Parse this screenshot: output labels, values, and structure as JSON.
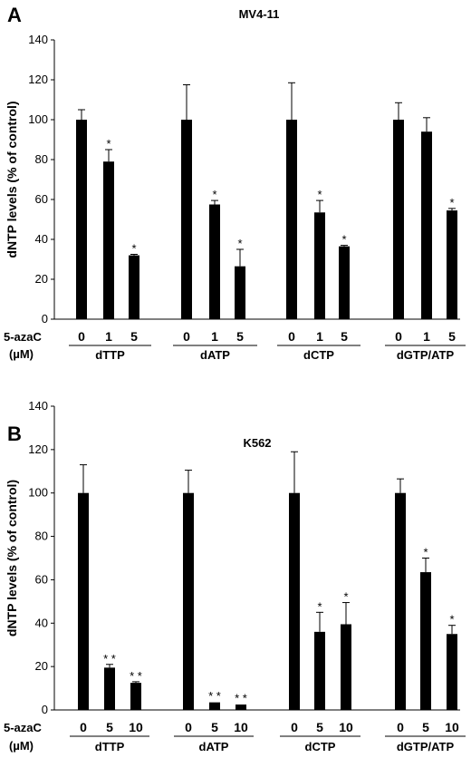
{
  "chart_data": [
    {
      "type": "bar",
      "panel_label": "A",
      "title": "MV4-11",
      "ylabel": "dNTP levels (% of control)",
      "ylim": [
        0,
        140
      ],
      "yticks": [
        0,
        20,
        40,
        60,
        80,
        100,
        120,
        140
      ],
      "dose_row_label": "5-azaC",
      "unit_row_label": "(µM)",
      "groups": [
        {
          "name": "dTTP",
          "doses": [
            "0",
            "1",
            "5"
          ],
          "values": [
            100,
            79,
            32
          ],
          "errors": [
            5,
            6,
            0.5
          ],
          "significance": [
            "",
            "*",
            "*"
          ]
        },
        {
          "name": "dATP",
          "doses": [
            "0",
            "1",
            "5"
          ],
          "values": [
            100,
            57.5,
            26.5
          ],
          "errors": [
            17.5,
            2,
            8.5
          ],
          "significance": [
            "",
            "*",
            "*"
          ]
        },
        {
          "name": "dCTP",
          "doses": [
            "0",
            "1",
            "5"
          ],
          "values": [
            100,
            53.5,
            36.5
          ],
          "errors": [
            18.5,
            6,
            0.5
          ],
          "significance": [
            "",
            "*",
            "*"
          ]
        },
        {
          "name": "dGTP/ATP",
          "doses": [
            "0",
            "1",
            "5"
          ],
          "values": [
            100,
            94,
            54.5
          ],
          "errors": [
            8.5,
            7,
            1
          ],
          "significance": [
            "",
            "",
            "*"
          ]
        }
      ]
    },
    {
      "type": "bar",
      "panel_label": "B",
      "title": "K562",
      "ylabel": "dNTP levels (% of control)",
      "ylim": [
        0,
        140
      ],
      "yticks": [
        0,
        20,
        40,
        60,
        80,
        100,
        120,
        140
      ],
      "dose_row_label": "5-azaC",
      "unit_row_label": "(µM)",
      "groups": [
        {
          "name": "dTTP",
          "doses": [
            "0",
            "5",
            "10"
          ],
          "values": [
            100,
            19.5,
            12.5
          ],
          "errors": [
            13,
            1.5,
            0.5
          ],
          "significance": [
            "",
            "* *",
            "* *"
          ]
        },
        {
          "name": "dATP",
          "doses": [
            "0",
            "5",
            "10"
          ],
          "values": [
            100,
            3.5,
            2.5
          ],
          "errors": [
            10.5,
            0.3,
            0.3
          ],
          "significance": [
            "",
            "* *",
            "* *"
          ]
        },
        {
          "name": "dCTP",
          "doses": [
            "0",
            "5",
            "10"
          ],
          "values": [
            100,
            36,
            39.5
          ],
          "errors": [
            19,
            9,
            10
          ],
          "significance": [
            "",
            "*",
            "*"
          ]
        },
        {
          "name": "dGTP/ATP",
          "doses": [
            "0",
            "5",
            "10"
          ],
          "values": [
            100,
            63.5,
            35
          ],
          "errors": [
            6.5,
            6.5,
            4
          ],
          "significance": [
            "",
            "*",
            "*"
          ]
        }
      ]
    }
  ]
}
